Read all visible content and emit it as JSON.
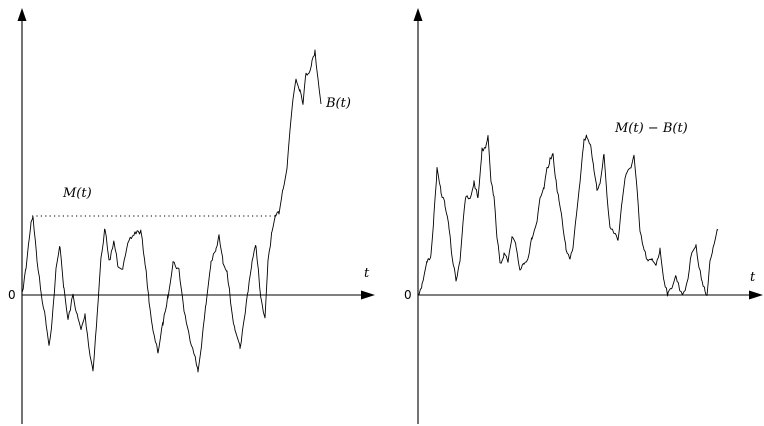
{
  "left_panel": {
    "origin_label": "0",
    "x_axis_label": "t",
    "running_max_label": "M(t)",
    "process_label": "B(t)"
  },
  "right_panel": {
    "origin_label": "0",
    "x_axis_label": "t",
    "process_label": "M(t) − B(t)"
  }
}
